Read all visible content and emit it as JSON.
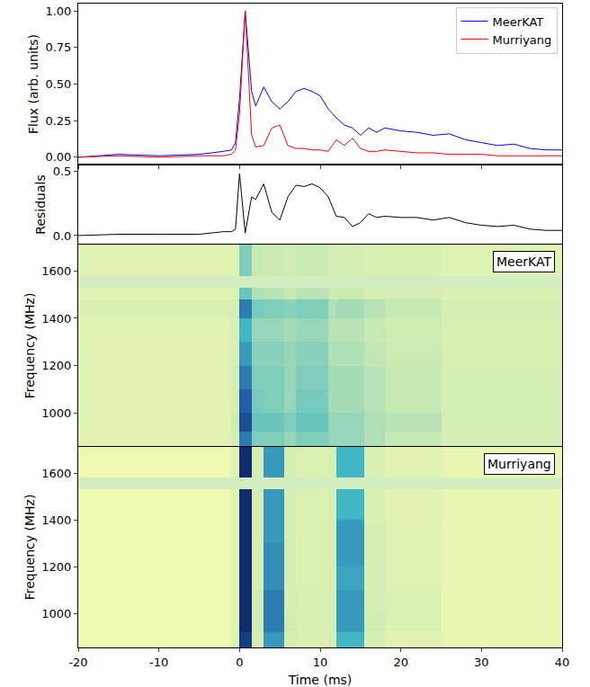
{
  "chart_data": [
    {
      "type": "line",
      "y_label": "Flux (arb. units)",
      "x": [
        -20,
        -15,
        -10,
        -5,
        -2,
        -1,
        -0.5,
        0,
        0.7,
        1.5,
        2,
        3,
        4,
        5,
        6,
        7,
        8,
        9,
        10,
        11,
        12,
        13,
        14,
        15,
        16,
        17,
        18,
        20,
        22,
        24,
        26,
        28,
        30,
        32,
        34,
        36,
        38,
        40
      ],
      "series": [
        {
          "name": "MeerKAT",
          "color": "#0000ff",
          "values": [
            0.0,
            0.02,
            0.01,
            0.02,
            0.04,
            0.05,
            0.1,
            0.4,
            1.0,
            0.45,
            0.35,
            0.48,
            0.38,
            0.33,
            0.38,
            0.45,
            0.47,
            0.45,
            0.42,
            0.33,
            0.27,
            0.22,
            0.2,
            0.15,
            0.2,
            0.17,
            0.2,
            0.18,
            0.17,
            0.15,
            0.16,
            0.12,
            0.1,
            0.08,
            0.09,
            0.06,
            0.05,
            0.05
          ]
        },
        {
          "name": "Murriyang",
          "color": "#ff0000",
          "values": [
            0.0,
            0.01,
            0.0,
            0.01,
            0.01,
            0.02,
            0.05,
            0.3,
            1.0,
            0.15,
            0.07,
            0.08,
            0.2,
            0.22,
            0.08,
            0.06,
            0.06,
            0.05,
            0.05,
            0.04,
            0.12,
            0.08,
            0.13,
            0.06,
            0.04,
            0.04,
            0.05,
            0.04,
            0.03,
            0.03,
            0.02,
            0.02,
            0.02,
            0.01,
            0.01,
            0.01,
            0.01,
            0.01
          ]
        }
      ],
      "xlim": [
        -20,
        40
      ],
      "xticks": [
        -20,
        -10,
        0,
        10,
        20,
        30,
        40
      ],
      "ylim": [
        -0.05,
        1.05
      ],
      "yticks": [
        {
          "value": 0,
          "label": "0.00"
        },
        {
          "value": 0.25,
          "label": "0.25"
        },
        {
          "value": 0.5,
          "label": "0.50"
        },
        {
          "value": 0.75,
          "label": "0.75"
        },
        {
          "value": 1,
          "label": "1.00"
        }
      ],
      "legend": "upper right",
      "grid": false,
      "tick_labels": "y"
    },
    {
      "type": "line",
      "y_label": "Residuals",
      "x": [
        -20,
        -15,
        -10,
        -5,
        -2,
        -1,
        -0.5,
        0,
        0.7,
        1.5,
        2,
        3,
        4,
        5,
        6,
        7,
        8,
        9,
        10,
        11,
        12,
        13,
        14,
        15,
        16,
        17,
        18,
        20,
        22,
        24,
        26,
        28,
        30,
        32,
        34,
        36,
        38,
        40
      ],
      "series": [
        {
          "color": "#000000",
          "values": [
            0.0,
            0.01,
            0.01,
            0.01,
            0.03,
            0.03,
            0.05,
            0.48,
            0.02,
            0.3,
            0.28,
            0.4,
            0.18,
            0.12,
            0.3,
            0.39,
            0.38,
            0.4,
            0.37,
            0.3,
            0.15,
            0.14,
            0.07,
            0.1,
            0.17,
            0.14,
            0.15,
            0.14,
            0.14,
            0.12,
            0.14,
            0.1,
            0.08,
            0.07,
            0.08,
            0.05,
            0.04,
            0.04
          ]
        }
      ],
      "xlim": [
        -20,
        40
      ],
      "xticks": [
        -20,
        -10,
        0,
        10,
        20,
        30,
        40
      ],
      "ylim": [
        -0.07,
        0.55
      ],
      "yticks": [
        {
          "value": 0,
          "label": "0.0"
        },
        {
          "value": 0.5,
          "label": "0.5"
        }
      ],
      "grid": false,
      "tick_labels": "y"
    },
    {
      "type": "heatmap",
      "y_label": "Frequency (MHz)",
      "annotation": "MeerKAT",
      "x_edges": [
        -20,
        -1,
        0,
        1.5,
        3,
        5.5,
        7,
        11,
        12,
        15.5,
        18,
        25,
        40
      ],
      "y_edges": [
        856,
        920,
        1000,
        1100,
        1200,
        1300,
        1400,
        1480,
        1530,
        1580,
        1712
      ],
      "z": [
        [
          0.25,
          0.3,
          0.75,
          0.5,
          0.5,
          0.45,
          0.5,
          0.45,
          0.45,
          0.4,
          0.35,
          0.3
        ],
        [
          0.25,
          0.32,
          0.85,
          0.55,
          0.55,
          0.5,
          0.55,
          0.45,
          0.45,
          0.4,
          0.38,
          0.3
        ],
        [
          0.25,
          0.3,
          0.8,
          0.52,
          0.5,
          0.45,
          0.52,
          0.42,
          0.42,
          0.38,
          0.35,
          0.3
        ],
        [
          0.25,
          0.3,
          0.75,
          0.5,
          0.5,
          0.45,
          0.5,
          0.42,
          0.42,
          0.38,
          0.35,
          0.3
        ],
        [
          0.25,
          0.28,
          0.7,
          0.48,
          0.48,
          0.45,
          0.48,
          0.4,
          0.4,
          0.36,
          0.33,
          0.28
        ],
        [
          0.25,
          0.28,
          0.65,
          0.45,
          0.45,
          0.42,
          0.45,
          0.38,
          0.38,
          0.35,
          0.32,
          0.28
        ],
        [
          0.28,
          0.3,
          0.75,
          0.52,
          0.5,
          0.48,
          0.5,
          0.4,
          0.42,
          0.38,
          0.35,
          0.3
        ],
        [
          0.25,
          0.27,
          0.55,
          0.4,
          0.38,
          0.35,
          0.38,
          0.33,
          0.33,
          0.3,
          0.3,
          0.27
        ],
        [
          null,
          null,
          null,
          null,
          null,
          null,
          null,
          null,
          null,
          null,
          null,
          null
        ],
        [
          0.25,
          0.26,
          0.5,
          0.35,
          0.33,
          0.32,
          0.33,
          0.3,
          0.3,
          0.28,
          0.28,
          0.26
        ]
      ],
      "zlim": [
        0,
        1
      ],
      "xlim": [
        -20,
        40
      ],
      "xticks": [
        -20,
        -10,
        0,
        10,
        20,
        30,
        40
      ],
      "ylim": [
        856,
        1712
      ],
      "yticks": [
        1000,
        1200,
        1400,
        1600
      ],
      "tick_labels": "y"
    },
    {
      "type": "heatmap",
      "y_label": "Frequency (MHz)",
      "x_label": "Time (ms)",
      "annotation": "Murriyang",
      "x_edges": [
        -20,
        -1,
        0,
        1.5,
        3,
        5.5,
        7,
        11,
        12,
        15.5,
        18,
        25,
        40
      ],
      "y_edges": [
        856,
        920,
        1000,
        1100,
        1200,
        1300,
        1400,
        1480,
        1530,
        1580,
        1712
      ],
      "z": [
        [
          0.2,
          0.25,
          0.9,
          0.3,
          0.7,
          0.3,
          0.28,
          0.3,
          0.65,
          0.3,
          0.25,
          0.22
        ],
        [
          0.2,
          0.25,
          0.95,
          0.32,
          0.75,
          0.32,
          0.28,
          0.3,
          0.7,
          0.32,
          0.27,
          0.22
        ],
        [
          0.2,
          0.25,
          0.95,
          0.32,
          0.75,
          0.3,
          0.28,
          0.3,
          0.7,
          0.3,
          0.27,
          0.22
        ],
        [
          0.2,
          0.25,
          0.95,
          0.3,
          0.72,
          0.3,
          0.27,
          0.3,
          0.68,
          0.3,
          0.26,
          0.22
        ],
        [
          0.2,
          0.25,
          0.95,
          0.3,
          0.72,
          0.3,
          0.27,
          0.3,
          0.7,
          0.3,
          0.26,
          0.22
        ],
        [
          0.2,
          0.25,
          0.95,
          0.3,
          0.7,
          0.3,
          0.27,
          0.3,
          0.7,
          0.3,
          0.26,
          0.22
        ],
        [
          0.2,
          0.25,
          0.95,
          0.3,
          0.7,
          0.3,
          0.27,
          0.28,
          0.65,
          0.28,
          0.25,
          0.22
        ],
        [
          0.2,
          0.25,
          0.95,
          0.3,
          0.7,
          0.3,
          0.27,
          0.28,
          0.65,
          0.28,
          0.25,
          0.22
        ],
        [
          null,
          null,
          null,
          null,
          null,
          null,
          null,
          null,
          null,
          null,
          null,
          null
        ],
        [
          0.2,
          0.25,
          0.95,
          0.3,
          0.7,
          0.3,
          0.27,
          0.28,
          0.65,
          0.28,
          0.25,
          0.22
        ]
      ],
      "zlim": [
        0,
        1
      ],
      "xlim": [
        -20,
        40
      ],
      "xticks": [
        -20,
        -10,
        0,
        10,
        20,
        30,
        40
      ],
      "ylim": [
        856,
        1712
      ],
      "yticks": [
        1000,
        1200,
        1400,
        1600
      ]
    }
  ]
}
